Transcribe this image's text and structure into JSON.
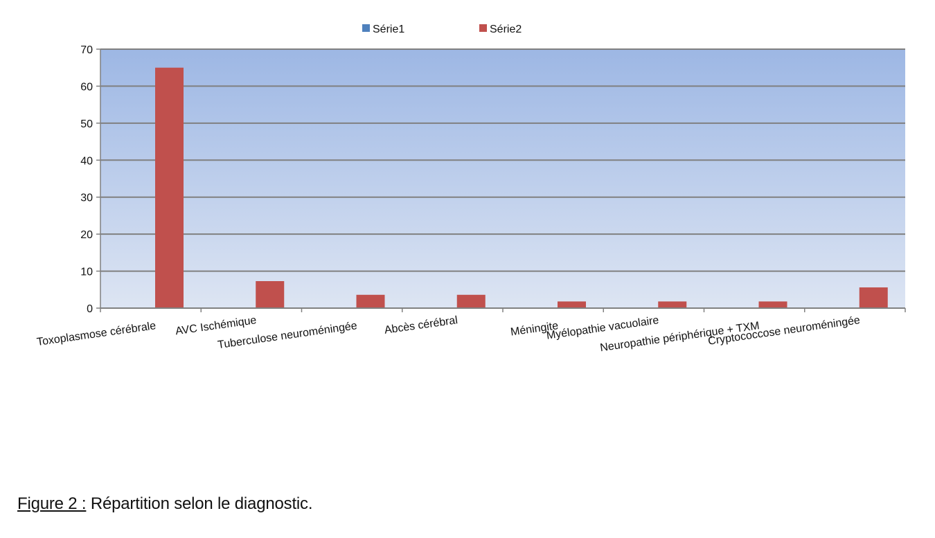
{
  "chart_data": {
    "type": "bar",
    "categories": [
      "Toxoplasmose cérébrale",
      "AVC Ischémique",
      "Tuberculose neuroméningée",
      "Abcès cérébral",
      "Méningite",
      "Myélopathie vacuolaire",
      "Neuropathie périphérique + TXM",
      "Cryptococcose neuroméningée"
    ],
    "series": [
      {
        "name": "Série1",
        "color": "#4f81bd",
        "values": [
          0,
          0,
          0,
          0,
          0,
          0,
          0,
          0
        ]
      },
      {
        "name": "Série2",
        "color": "#c0504d",
        "values": [
          65,
          7.3,
          3.6,
          3.6,
          1.8,
          1.8,
          1.8,
          5.6
        ]
      }
    ],
    "ylim": [
      0,
      70
    ],
    "yticks": [
      0,
      10,
      20,
      30,
      40,
      50,
      60,
      70
    ],
    "grid": true,
    "legend": "top-center",
    "background_gradient": [
      "#9db7e4",
      "#dde5f3"
    ]
  },
  "caption": {
    "lead": "Figure 2 :",
    "text": " Répartition selon le diagnostic."
  }
}
